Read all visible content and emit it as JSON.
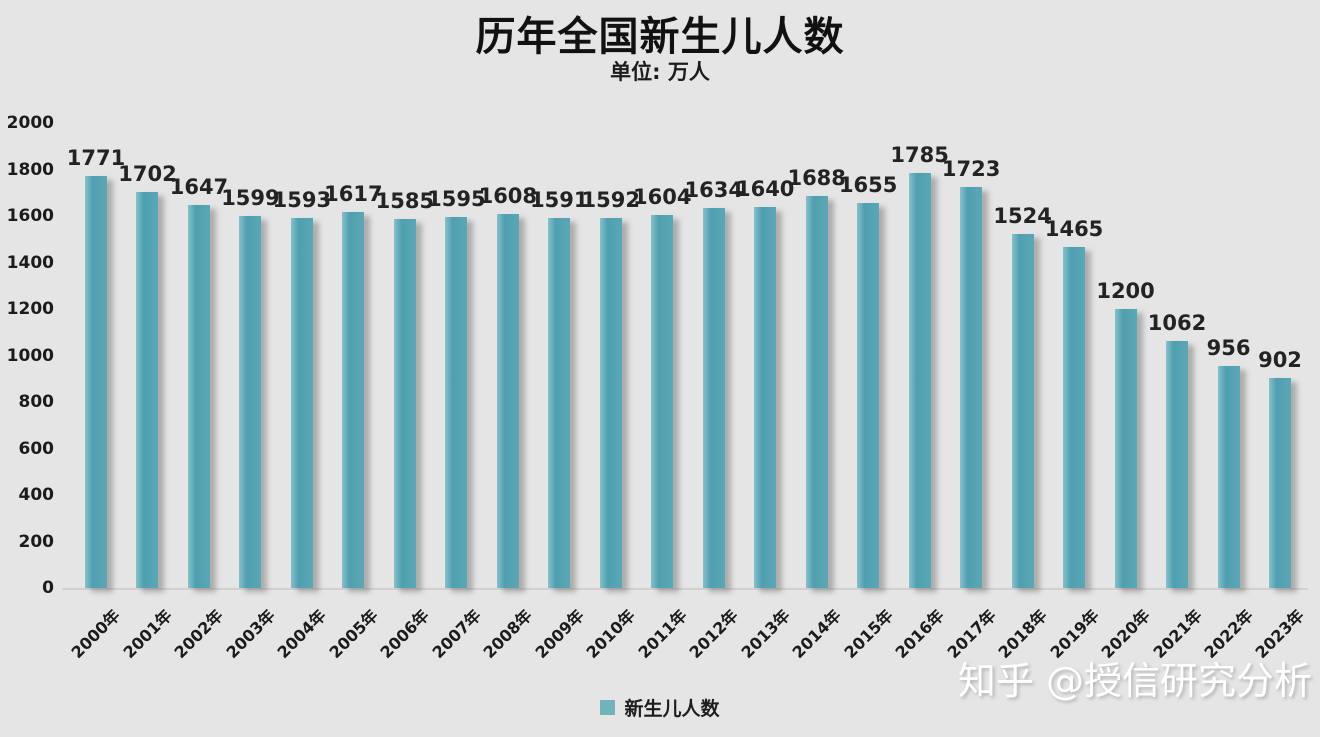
{
  "title": "历年全国新生儿人数",
  "subtitle": "单位: 万人",
  "legend": {
    "label": "新生儿人数",
    "swatch_color": "#6fb3bb"
  },
  "watermark": "知乎 @授信研究分析",
  "colors": {
    "background": "#e6e5e6",
    "bar": "#57a5b3",
    "bar_shadow": "#6a6a6a",
    "value_text": "#232323",
    "axis_text": "#1b1b1b"
  },
  "chart_data": {
    "type": "bar",
    "title": "历年全国新生儿人数",
    "subtitle": "单位: 万人",
    "series_name": "新生儿人数",
    "categories": [
      "2000年",
      "2001年",
      "2002年",
      "2003年",
      "2004年",
      "2005年",
      "2006年",
      "2007年",
      "2008年",
      "2009年",
      "2010年",
      "2011年",
      "2012年",
      "2013年",
      "2014年",
      "2015年",
      "2016年",
      "2017年",
      "2018年",
      "2019年",
      "2020年",
      "2021年",
      "2022年",
      "2023年"
    ],
    "values": [
      1771,
      1702,
      1647,
      1599,
      1593,
      1617,
      1585,
      1595,
      1608,
      1591,
      1592,
      1604,
      1634,
      1640,
      1688,
      1655,
      1785,
      1723,
      1524,
      1465,
      1200,
      1062,
      956,
      902
    ],
    "xlabel": "",
    "ylabel": "",
    "ylim": [
      0,
      2000
    ],
    "yticks": [
      0,
      200,
      400,
      600,
      800,
      1000,
      1200,
      1400,
      1600,
      1800,
      2000
    ],
    "grid": false,
    "legend_position": "bottom"
  }
}
